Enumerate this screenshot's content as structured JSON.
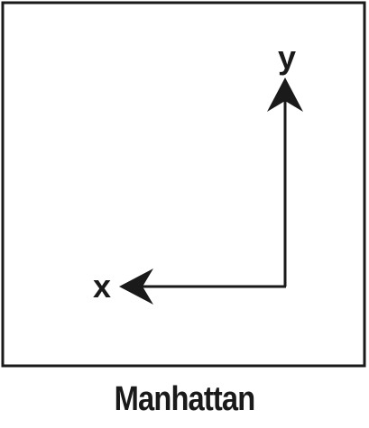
{
  "diagram": {
    "caption": "Manhattan",
    "axis_labels": {
      "x": "x",
      "y": "y"
    },
    "colors": {
      "stroke": "#1a1a1a",
      "background": "#ffffff"
    }
  }
}
